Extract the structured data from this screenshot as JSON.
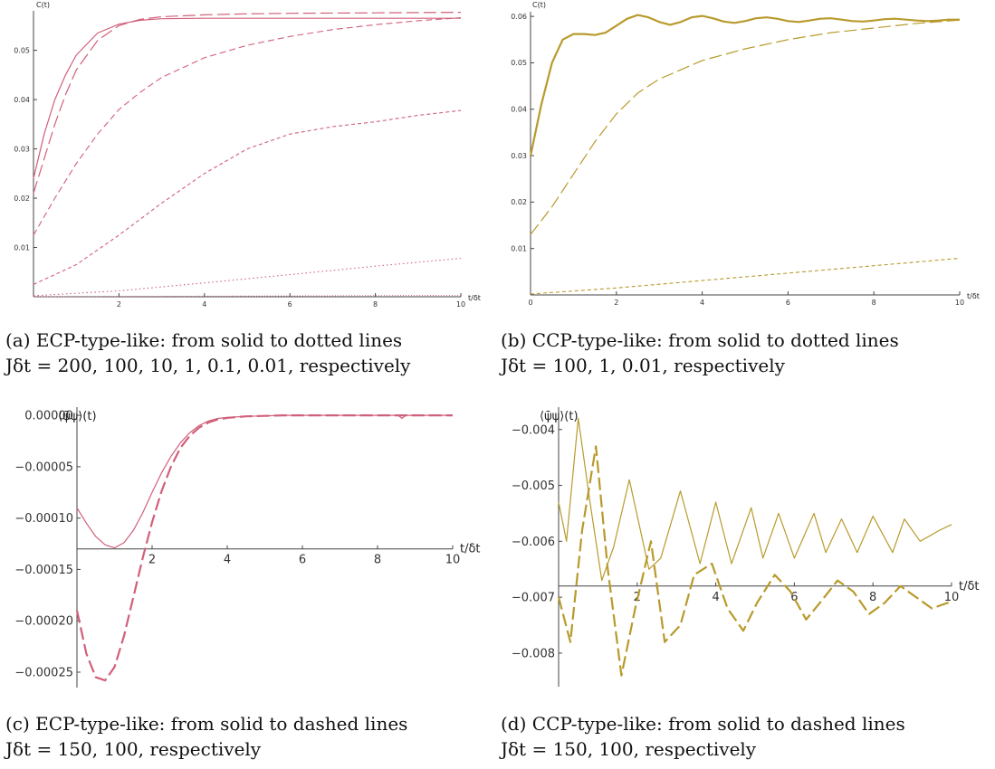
{
  "colors": {
    "ecp": "#d0607a",
    "ccp": "#b89a2c"
  },
  "captions": {
    "a": {
      "line1": "(a) ECP-type-like: from solid to dotted lines",
      "line2": "Jδt = 200, 100, 10, 1, 0.1, 0.01, respectively"
    },
    "b": {
      "line1": "(b) CCP-type-like: from solid to dotted lines",
      "line2": "Jδt = 100, 1, 0.01, respectively"
    },
    "c": {
      "line1": "(c) ECP-type-like: from solid to dashed lines",
      "line2": "Jδt = 150, 100, respectively"
    },
    "d": {
      "line1": "(d) CCP-type-like: from solid to dashed lines",
      "line2": "Jδt = 150, 100, respectively"
    }
  },
  "chart_data": [
    {
      "id": "a",
      "type": "line",
      "ylabel": "C(t)",
      "xlabel": "t/δt",
      "xlim": [
        0,
        10
      ],
      "ylim": [
        0,
        0.058
      ],
      "xticks": [
        2,
        4,
        6,
        8,
        10
      ],
      "xtick_labels": [
        "2",
        "4",
        "6",
        "8",
        "10"
      ],
      "yticks": [
        0.01,
        0.02,
        0.03,
        0.04,
        0.05
      ],
      "ytick_labels": [
        "0.01",
        "0.02",
        "0.03",
        "0.04",
        "0.05"
      ],
      "series": [
        {
          "style": "solid",
          "x": [
            0,
            0.25,
            0.5,
            0.75,
            1,
            1.5,
            2,
            2.5,
            3,
            4,
            5,
            6,
            8,
            10
          ],
          "y": [
            0.024,
            0.033,
            0.04,
            0.045,
            0.049,
            0.0535,
            0.0553,
            0.0561,
            0.0564,
            0.0565,
            0.0565,
            0.0565,
            0.0565,
            0.0565
          ]
        },
        {
          "style": "longdash",
          "x": [
            0,
            0.25,
            0.5,
            0.75,
            1,
            1.5,
            2,
            2.5,
            3,
            4,
            5,
            6,
            8,
            10
          ],
          "y": [
            0.021,
            0.028,
            0.035,
            0.041,
            0.046,
            0.052,
            0.055,
            0.0563,
            0.0568,
            0.0572,
            0.0574,
            0.0575,
            0.0576,
            0.0577
          ]
        },
        {
          "style": "dash",
          "x": [
            0,
            0.5,
            1,
            1.5,
            2,
            2.5,
            3,
            4,
            5,
            6,
            7,
            8,
            9,
            10
          ],
          "y": [
            0.0125,
            0.02,
            0.027,
            0.033,
            0.038,
            0.0415,
            0.0445,
            0.0485,
            0.051,
            0.0528,
            0.0542,
            0.0552,
            0.056,
            0.0566
          ]
        },
        {
          "style": "shortdash",
          "x": [
            0,
            1,
            2,
            3,
            4,
            5,
            6,
            7,
            8,
            9,
            10
          ],
          "y": [
            0.0025,
            0.0065,
            0.0125,
            0.019,
            0.025,
            0.03,
            0.033,
            0.0345,
            0.0355,
            0.0368,
            0.0378
          ]
        },
        {
          "style": "dot",
          "x": [
            0,
            2,
            4,
            6,
            8,
            10
          ],
          "y": [
            0.0002,
            0.0012,
            0.0028,
            0.0045,
            0.0062,
            0.0078
          ]
        },
        {
          "style": "finedot",
          "x": [
            0,
            10
          ],
          "y": [
            0,
            0.0003
          ]
        }
      ]
    },
    {
      "id": "b",
      "type": "line",
      "ylabel": "C(t)",
      "xlabel": "t/δt",
      "xlim": [
        0,
        10
      ],
      "ylim": [
        0,
        0.061
      ],
      "xticks": [
        0,
        2,
        4,
        6,
        8,
        10
      ],
      "xtick_labels": [
        "0",
        "2",
        "4",
        "6",
        "8",
        "10"
      ],
      "yticks": [
        0.01,
        0.02,
        0.03,
        0.04,
        0.05,
        0.06
      ],
      "ytick_labels": [
        "0.01",
        "0.02",
        "0.03",
        "0.04",
        "0.05",
        "0.06"
      ],
      "series": [
        {
          "style": "solid-thick",
          "x": [
            0,
            0.25,
            0.5,
            0.75,
            1,
            1.25,
            1.5,
            1.75,
            2,
            2.25,
            2.5,
            2.75,
            3,
            3.25,
            3.5,
            3.75,
            4,
            4.25,
            4.5,
            4.75,
            5,
            5.25,
            5.5,
            5.75,
            6,
            6.25,
            6.5,
            6.75,
            7,
            7.25,
            7.5,
            7.75,
            8,
            8.25,
            8.5,
            8.75,
            9,
            9.25,
            9.5,
            9.75,
            10
          ],
          "y": [
            0.03,
            0.041,
            0.05,
            0.055,
            0.0562,
            0.0562,
            0.056,
            0.0565,
            0.058,
            0.0595,
            0.0603,
            0.0598,
            0.0588,
            0.0582,
            0.0588,
            0.0598,
            0.0601,
            0.0596,
            0.0589,
            0.0586,
            0.059,
            0.0596,
            0.0598,
            0.0595,
            0.059,
            0.0588,
            0.0591,
            0.0595,
            0.0596,
            0.0593,
            0.059,
            0.0589,
            0.0591,
            0.0594,
            0.0595,
            0.0593,
            0.0591,
            0.059,
            0.0591,
            0.0593,
            0.0593
          ]
        },
        {
          "style": "longdash",
          "x": [
            0,
            0.5,
            1,
            1.5,
            2,
            2.5,
            3,
            4,
            5,
            6,
            7,
            8,
            9,
            10
          ],
          "y": [
            0.013,
            0.019,
            0.026,
            0.033,
            0.039,
            0.0435,
            0.0465,
            0.0505,
            0.053,
            0.055,
            0.0565,
            0.0575,
            0.0585,
            0.0592
          ]
        },
        {
          "style": "shortdash",
          "x": [
            0,
            2,
            4,
            6,
            8,
            10
          ],
          "y": [
            0.0002,
            0.0015,
            0.0031,
            0.0047,
            0.0063,
            0.0079
          ]
        }
      ]
    },
    {
      "id": "c",
      "type": "line",
      "ylabel": "⟨ψ̄ψ⟩(t)",
      "xlabel": "t/δt",
      "xlim": [
        0,
        10
      ],
      "ylim": [
        -0.000265,
        8e-06
      ],
      "xaxis_y": -0.00013,
      "xticks": [
        2,
        4,
        6,
        8,
        10
      ],
      "xtick_labels": [
        "2",
        "4",
        "6",
        "8",
        "10"
      ],
      "yticks": [
        0,
        -5e-05,
        -0.0001,
        -0.00015,
        -0.0002,
        -0.00025
      ],
      "ytick_labels": [
        "0.00000",
        "−0.00005",
        "−0.00010",
        "−0.00015",
        "−0.00020",
        "−0.00025"
      ],
      "series": [
        {
          "style": "solid",
          "x": [
            0,
            0.25,
            0.5,
            0.75,
            1,
            1.25,
            1.5,
            1.75,
            2,
            2.25,
            2.5,
            2.75,
            3,
            3.25,
            3.5,
            3.75,
            4,
            4.5,
            5,
            5.5,
            6,
            7,
            8,
            8.55,
            8.65,
            8.75,
            9,
            10
          ],
          "y": [
            -9e-05,
            -0.000105,
            -0.000118,
            -0.000126,
            -0.000129,
            -0.000124,
            -0.000112,
            -9.5e-05,
            -7.5e-05,
            -5.6e-05,
            -4e-05,
            -2.7e-05,
            -1.7e-05,
            -1e-05,
            -5.5e-06,
            -3e-06,
            -2e-06,
            -1e-06,
            -5e-07,
            0,
            0,
            0,
            0,
            0,
            -3e-06,
            0,
            0,
            0
          ]
        },
        {
          "style": "longdash-thick",
          "x": [
            0,
            0.25,
            0.5,
            0.75,
            1,
            1.25,
            1.5,
            1.75,
            2,
            2.25,
            2.5,
            2.75,
            3,
            3.25,
            3.5,
            3.75,
            4,
            4.5,
            5,
            5.5,
            6,
            7,
            8,
            9,
            10
          ],
          "y": [
            -0.00019,
            -0.000232,
            -0.000255,
            -0.000258,
            -0.000245,
            -0.000215,
            -0.000177,
            -0.000139,
            -0.000104,
            -7.4e-05,
            -5e-05,
            -3.2e-05,
            -2e-05,
            -1.2e-05,
            -7e-06,
            -4e-06,
            -2.5e-06,
            -1e-06,
            -5e-07,
            0,
            0,
            0,
            0,
            0,
            0
          ]
        }
      ]
    },
    {
      "id": "d",
      "type": "line",
      "ylabel": "⟨ψ̄ψ⟩(t)",
      "xlabel": "t/δt",
      "xlim": [
        0,
        10
      ],
      "ylim": [
        -0.0086,
        -0.0036
      ],
      "xaxis_y": -0.0068,
      "xticks": [
        2,
        4,
        6,
        8,
        10
      ],
      "xtick_labels": [
        "2",
        "4",
        "6",
        "8",
        "10"
      ],
      "yticks": [
        -0.004,
        -0.005,
        -0.006,
        -0.007,
        -0.008
      ],
      "ytick_labels": [
        "−0.004",
        "−0.005",
        "−0.006",
        "−0.007",
        "−0.008"
      ],
      "series": [
        {
          "style": "solid",
          "x": [
            0,
            0.2,
            0.5,
            0.8,
            1.1,
            1.4,
            1.8,
            2.3,
            2.6,
            3.1,
            3.6,
            4.0,
            4.4,
            4.9,
            5.2,
            5.6,
            6.0,
            6.5,
            6.8,
            7.2,
            7.6,
            8.0,
            8.5,
            8.8,
            9.2,
            9.7,
            10
          ],
          "y": [
            -0.0053,
            -0.006,
            -0.0038,
            -0.0053,
            -0.0067,
            -0.0061,
            -0.0049,
            -0.0065,
            -0.0063,
            -0.0051,
            -0.0064,
            -0.0053,
            -0.0064,
            -0.0054,
            -0.0063,
            -0.0055,
            -0.0063,
            -0.0055,
            -0.0062,
            -0.0056,
            -0.0062,
            -0.00555,
            -0.0062,
            -0.0056,
            -0.006,
            -0.0058,
            -0.0057
          ]
        },
        {
          "style": "longdash-thick",
          "x": [
            0,
            0.3,
            0.6,
            0.95,
            1.25,
            1.6,
            1.95,
            2.35,
            2.7,
            3.1,
            3.45,
            3.9,
            4.3,
            4.7,
            5.05,
            5.5,
            5.9,
            6.3,
            6.65,
            7.1,
            7.5,
            7.9,
            8.3,
            8.7,
            9.1,
            9.5,
            9.9,
            10
          ],
          "y": [
            -0.007,
            -0.0078,
            -0.0058,
            -0.0043,
            -0.0065,
            -0.0084,
            -0.0072,
            -0.006,
            -0.0078,
            -0.0075,
            -0.0066,
            -0.0064,
            -0.0072,
            -0.0076,
            -0.0071,
            -0.0066,
            -0.0069,
            -0.0074,
            -0.0071,
            -0.0067,
            -0.0069,
            -0.0073,
            -0.0071,
            -0.0068,
            -0.007,
            -0.0072,
            -0.0071,
            -0.0071
          ]
        }
      ]
    }
  ]
}
